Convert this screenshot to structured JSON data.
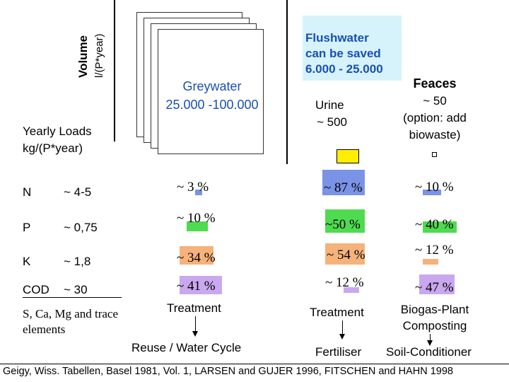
{
  "axis": {
    "volume_label": "Volume",
    "volume_unit": "l/(P*year)"
  },
  "yearly_loads": {
    "title": "Yearly Loads",
    "unit": "kg/(P*year)"
  },
  "columns": {
    "greywater": {
      "label": "Greywater",
      "volume": "25.000 -100.000"
    },
    "flushwater": {
      "line1": "Flushwater",
      "line2": "can be saved",
      "line3": "6.000 - 25.000"
    },
    "urine": {
      "label": "Urine",
      "volume": "~ 500"
    },
    "feaces": {
      "label": "Feaces",
      "volume": "~ 50",
      "option1": "(option: add",
      "option2": "biowaste)"
    }
  },
  "rows": [
    {
      "element": "N",
      "load": "~  4-5",
      "greywater": "~ 3  %",
      "urine": "~ 87  %",
      "feaces": "~ 10 %"
    },
    {
      "element": "P",
      "load": "~  0,75",
      "greywater": "~ 10 %",
      "urine": "~50  %",
      "feaces": "~ 40 %"
    },
    {
      "element": "K",
      "load": "~  1,8",
      "greywater": "~ 34 %",
      "urine": "~ 54 %",
      "feaces": "~ 12 %"
    },
    {
      "element": "COD",
      "load": "~     30",
      "greywater": "~ 41 %",
      "urine": "~ 12 %",
      "feaces": "~ 47 %"
    }
  ],
  "trace": {
    "line1": "S, Ca, Mg and trace",
    "line2": "elements"
  },
  "treatment": {
    "greywater": "Treatment",
    "urine": "Treatment",
    "feaces_line1": "Biogas-Plant",
    "feaces_line2": "Composting"
  },
  "outputs": {
    "greywater": "Reuse / Water Cycle",
    "urine": "Fertiliser",
    "feaces": "Soil-Conditioner"
  },
  "source": "Geigy, Wiss. Tabellen, Basel 1981, Vol. 1, LARSEN and GUJER 1996, FITSCHEN and HAHN 1998",
  "colors": {
    "nitrogen_bar": "#7b93e6",
    "phosphorus_bar": "#4fdb4f",
    "potassium_bar": "#f5b27a",
    "cod_bar": "#c9a8f0",
    "urine_volume": "#ffee00",
    "flush_bg": "#d6f3fb",
    "text_blue": "#1a4fb3"
  },
  "chart_data": {
    "type": "table",
    "columns": [
      "Greywater",
      "Urine",
      "Feaces"
    ],
    "rows": [
      "N",
      "P",
      "K",
      "COD"
    ],
    "values_percent": [
      [
        3,
        87,
        10
      ],
      [
        10,
        50,
        40
      ],
      [
        34,
        54,
        12
      ],
      [
        41,
        12,
        47
      ]
    ],
    "loads": [
      "~ 4-5",
      "~ 0,75",
      "~ 1,8",
      "~ 30"
    ]
  }
}
